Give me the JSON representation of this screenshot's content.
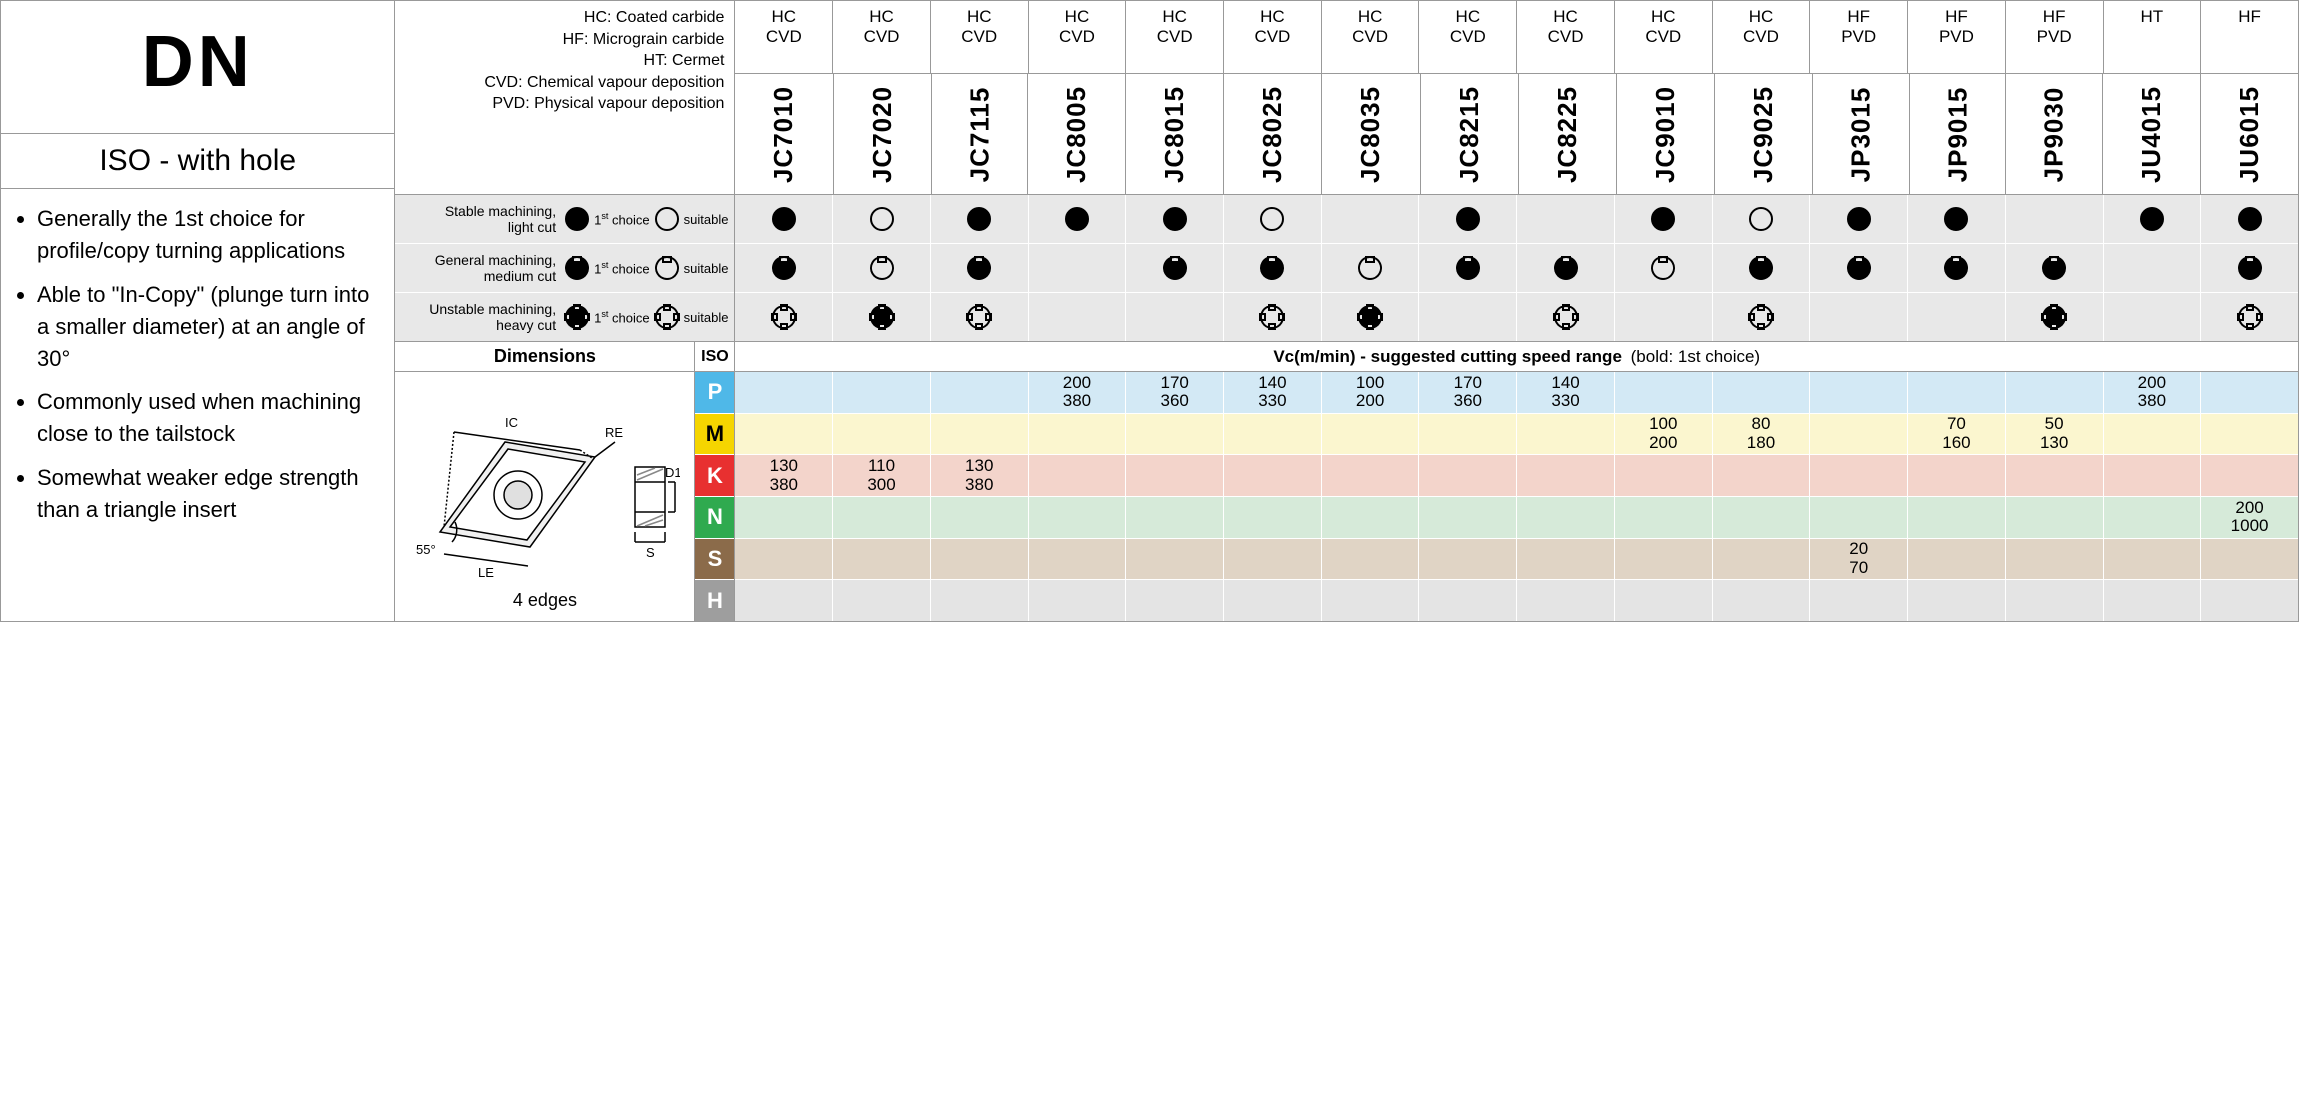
{
  "title": "DN",
  "subtitle": "ISO - with hole",
  "bullets": [
    "Generally the 1st choice for profile/copy turning applications",
    "Able to \"In-Copy\" (plunge turn into a smaller diameter) at an angle of 30°",
    "Commonly used when machining close to the tailstock",
    "Somewhat weaker edge strength than a triangle insert"
  ],
  "legend_lines": [
    "HC: Coated carbide",
    "HF: Micrograin carbide",
    "HT: Cermet",
    "CVD: Chemical vapour deposition",
    "PVD: Physical vapour deposition"
  ],
  "grade_types": [
    "HC CVD",
    "HC CVD",
    "HC CVD",
    "HC CVD",
    "HC CVD",
    "HC CVD",
    "HC CVD",
    "HC CVD",
    "HC CVD",
    "HC CVD",
    "HC CVD",
    "HF PVD",
    "HF PVD",
    "HF PVD",
    "HT",
    "HF"
  ],
  "grade_codes": [
    "JC7010",
    "JC7020",
    "JC7115",
    "JC8005",
    "JC8015",
    "JC8025",
    "JC8035",
    "JC8215",
    "JC8225",
    "JC9010",
    "JC9025",
    "JP3015",
    "JP9015",
    "JP9030",
    "JU4015",
    "JU6015"
  ],
  "suitability_rows": [
    {
      "label": "Stable machining,\nlight cut",
      "first_label": "1st choice",
      "suit_label": "suitable",
      "shape": "circle"
    },
    {
      "label": "General machining,\nmedium cut",
      "first_label": "1st choice",
      "suit_label": "suitable",
      "shape": "notch"
    },
    {
      "label": "Unstable machining,\nheavy cut",
      "first_label": "1st choice",
      "suit_label": "suitable",
      "shape": "cross"
    }
  ],
  "suitability_grid": [
    [
      "F",
      "S",
      "F",
      "F",
      "F",
      "S",
      "",
      "F",
      "",
      "F",
      "S",
      "F",
      "F",
      "",
      "F",
      "F"
    ],
    [
      "F",
      "S",
      "F",
      "",
      "F",
      "F",
      "S",
      "F",
      "F",
      "S",
      "F",
      "F",
      "F",
      "F",
      "",
      "F"
    ],
    [
      "S",
      "F",
      "S",
      "",
      "",
      "S",
      "F",
      "",
      "S",
      "",
      "S",
      "",
      "",
      "F",
      "",
      "S"
    ]
  ],
  "dimensions_label": "Dimensions",
  "iso_label": "ISO",
  "vc_title_bold": "Vc(m/min) - suggested cutting speed range",
  "vc_title_rest": "(bold: 1st choice)",
  "diagram_labels": {
    "ic": "IC",
    "re": "RE",
    "d1": "D1",
    "le": "LE",
    "s": "S",
    "angle": "55°"
  },
  "edges_label": "4 edges",
  "iso_rows": [
    {
      "code": "P",
      "bg": "#4fb8e8",
      "fg": "#ffffff",
      "row_bg": "#d3e9f5"
    },
    {
      "code": "M",
      "bg": "#f5d500",
      "fg": "#000000",
      "row_bg": "#fbf6cf"
    },
    {
      "code": "K",
      "bg": "#e83030",
      "fg": "#ffffff",
      "row_bg": "#f3d4cb"
    },
    {
      "code": "N",
      "bg": "#2faa4f",
      "fg": "#ffffff",
      "row_bg": "#d6ead9"
    },
    {
      "code": "S",
      "bg": "#8b6b4a",
      "fg": "#ffffff",
      "row_bg": "#e0d4c5"
    },
    {
      "code": "H",
      "bg": "#9e9e9e",
      "fg": "#ffffff",
      "row_bg": "#e4e4e4"
    }
  ],
  "speed_grid": {
    "P": [
      "",
      "",
      "",
      "200\n380",
      "170\n360",
      "140\n330",
      "100\n200",
      "170\n360",
      "140\n330",
      "",
      "",
      "",
      "",
      "",
      "200\n380",
      ""
    ],
    "M": [
      "",
      "",
      "",
      "",
      "",
      "",
      "",
      "",
      "",
      "100\n200",
      "80\n180",
      "",
      "70\n160",
      "50\n130",
      "",
      ""
    ],
    "K": [
      "130\n380",
      "110\n300",
      "130\n380",
      "",
      "",
      "",
      "",
      "",
      "",
      "",
      "",
      "",
      "",
      "",
      "",
      ""
    ],
    "N": [
      "",
      "",
      "",
      "",
      "",
      "",
      "",
      "",
      "",
      "",
      "",
      "",
      "",
      "",
      "",
      "200\n1000"
    ],
    "S": [
      "",
      "",
      "",
      "",
      "",
      "",
      "",
      "",
      "",
      "",
      "",
      "20\n70",
      "",
      "",
      "",
      ""
    ],
    "H": [
      "",
      "",
      "",
      "",
      "",
      "",
      "",
      "",
      "",
      "",
      "",
      "",
      "",
      "",
      "",
      ""
    ]
  },
  "svg_colors": {
    "stroke": "#000000",
    "fill_light": "#e8e8e8",
    "hatch": "#888888"
  }
}
